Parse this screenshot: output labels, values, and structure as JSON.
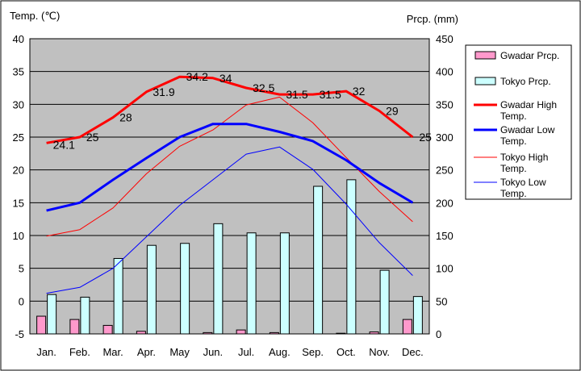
{
  "chart_data": {
    "type": "bar+line",
    "y_left_label": "Temp. (℃)",
    "y_right_label": "Prcp. (mm)",
    "ylim_left": [
      -5,
      40
    ],
    "ylim_right": [
      0,
      450
    ],
    "yticks_left": [
      "40",
      "35",
      "30",
      "25",
      "20",
      "15",
      "10",
      "5",
      "0",
      "-5"
    ],
    "yticks_right": [
      "450",
      "400",
      "350",
      "300",
      "250",
      "200",
      "150",
      "100",
      "50",
      "0"
    ],
    "categories": [
      "Jan.",
      "Feb.",
      "Mar.",
      "Apr.",
      "May",
      "Jun.",
      "Jul.",
      "Aug.",
      "Sep.",
      "Oct.",
      "Nov.",
      "Dec."
    ],
    "grid": true,
    "legend_position": "right",
    "bar_series": [
      {
        "name": "Gwadar Prcp.",
        "color": "#ff99cc",
        "values": [
          27,
          22,
          13,
          4,
          0,
          2,
          6,
          2,
          0,
          1,
          3,
          22
        ]
      },
      {
        "name": "Tokyo Prcp.",
        "color": "#ccffff",
        "values": [
          60,
          56,
          115,
          135,
          138,
          168,
          154,
          154,
          225,
          235,
          97,
          57
        ]
      }
    ],
    "line_series": [
      {
        "name": "Gwadar High Temp.",
        "color": "#ff0000",
        "width": 3,
        "values": [
          24.1,
          25,
          28,
          31.9,
          34.2,
          34,
          32.5,
          31.5,
          31.5,
          32,
          29,
          25
        ],
        "labels": [
          "24.1",
          "25",
          "28",
          "31.9",
          "34.2",
          "34",
          "32.5",
          "31.5",
          "31.5",
          "32",
          "29",
          "25"
        ]
      },
      {
        "name": "Gwadar Low Temp.",
        "color": "#0000ff",
        "width": 3,
        "values": [
          13.8,
          15.0,
          18.5,
          21.8,
          25.0,
          27.0,
          27.0,
          25.8,
          24.4,
          21.5,
          18.0,
          15.0
        ]
      },
      {
        "name": "Tokyo High Temp.",
        "color": "#ff0000",
        "width": 1,
        "values": [
          9.9,
          10.9,
          14.2,
          19.4,
          23.6,
          26.1,
          29.9,
          31.1,
          27.2,
          21.9,
          16.7,
          12.1
        ]
      },
      {
        "name": "Tokyo Low Temp.",
        "color": "#0000ff",
        "width": 1,
        "values": [
          1.2,
          2.1,
          5.0,
          9.8,
          14.6,
          18.5,
          22.4,
          23.5,
          20.1,
          14.8,
          8.9,
          3.9
        ]
      }
    ],
    "legend": [
      {
        "label": "Gwadar Prcp.",
        "kind": "bar",
        "color": "#ff99cc"
      },
      {
        "label": "Tokyo Prcp.",
        "kind": "bar",
        "color": "#ccffff"
      },
      {
        "label": "Gwadar High Temp.",
        "kind": "line",
        "color": "#ff0000",
        "width": 3
      },
      {
        "label": "Gwadar Low Temp.",
        "kind": "line",
        "color": "#0000ff",
        "width": 3
      },
      {
        "label": "Tokyo High Temp.",
        "kind": "line",
        "color": "#ff0000",
        "width": 1
      },
      {
        "label": "Tokyo Low Temp.",
        "kind": "line",
        "color": "#0000ff",
        "width": 1
      }
    ]
  }
}
